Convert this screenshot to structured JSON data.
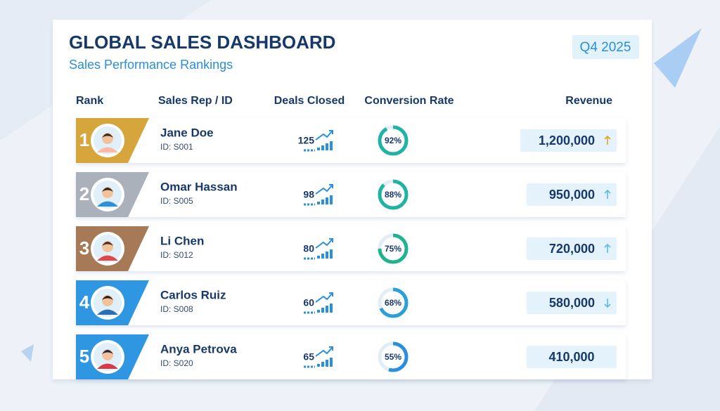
{
  "header": {
    "title": "GLOBAL SALES DASHBOARD",
    "subtitle": "Sales Performance Rankings",
    "period": "Q4 2025"
  },
  "table": {
    "columns": [
      "Rank",
      "Sales Rep / ID",
      "Deals Closed",
      "Conversion Rate",
      "Revenue"
    ],
    "rows": [
      {
        "rank": 1,
        "name": "Jane Doe",
        "id": "ID: S001",
        "deals": 125,
        "conversion": 92,
        "conversion_label": "92%",
        "revenue": "1,200,000",
        "trend": "up",
        "badge_color": "#d6a53c",
        "ring_color": "#1fb3a3",
        "trend_color": "#e2a22a"
      },
      {
        "rank": 2,
        "name": "Omar Hassan",
        "id": "ID: S005",
        "deals": 98,
        "conversion": 88,
        "conversion_label": "88%",
        "revenue": "950,000",
        "trend": "up",
        "badge_color": "#aab1bb",
        "ring_color": "#1fb3a3",
        "trend_color": "#5bbde2"
      },
      {
        "rank": 3,
        "name": "Li Chen",
        "id": "ID: S012",
        "deals": 80,
        "conversion": 75,
        "conversion_label": "75%",
        "revenue": "720,000",
        "trend": "up",
        "badge_color": "#a67a56",
        "ring_color": "#1fb38f",
        "trend_color": "#5bbde2"
      },
      {
        "rank": 4,
        "name": "Carlos Ruiz",
        "id": "ID: S008",
        "deals": 60,
        "conversion": 68,
        "conversion_label": "68%",
        "revenue": "580,000",
        "trend": "down",
        "badge_color": "#2f96e2",
        "ring_color": "#2a9fd8",
        "trend_color": "#5bbde2"
      },
      {
        "rank": 5,
        "name": "Anya Petrova",
        "id": "ID: S020",
        "deals": 65,
        "conversion": 55,
        "conversion_label": "55%",
        "revenue": "410,000",
        "badge_color": "#2f96e2",
        "ring_color": "#2a8fe0"
      }
    ]
  }
}
